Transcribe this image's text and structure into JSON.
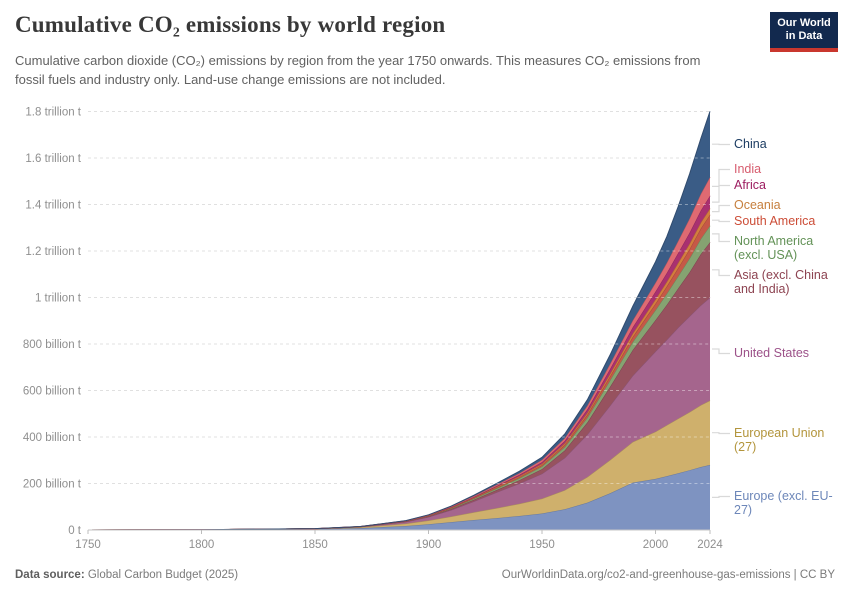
{
  "header": {
    "title": "Cumulative CO₂ emissions by world region",
    "subtitle": "Cumulative carbon dioxide (CO₂) emissions by region from the year 1750 onwards. This measures CO₂ emissions from fossil fuels and industry only. Land-use change emissions are not included.",
    "logo": {
      "line1": "Our World",
      "line2": "in Data"
    }
  },
  "chart_data": {
    "type": "area",
    "stacked": true,
    "title": "Cumulative CO₂ emissions by world region",
    "unit": "tonnes of CO₂",
    "values_unit": "billion tonnes",
    "grid": true,
    "legend_position": "right",
    "x_range": [
      1750,
      2024
    ],
    "y_range_billion_t": [
      0,
      1800
    ],
    "years": [
      1750,
      1800,
      1850,
      1870,
      1890,
      1900,
      1910,
      1920,
      1930,
      1940,
      1950,
      1960,
      1970,
      1980,
      1990,
      2000,
      2005,
      2010,
      2015,
      2020,
      2024
    ],
    "x_tick_labels": [
      "1750",
      "1800",
      "1850",
      "1900",
      "1950",
      "2000",
      "2024"
    ],
    "x_ticks": [
      1750,
      1800,
      1850,
      1900,
      1950,
      2000,
      2024
    ],
    "y_ticks": [
      {
        "value": 0,
        "label": "0 t"
      },
      {
        "value": 200,
        "label": "200 billion t"
      },
      {
        "value": 400,
        "label": "400 billion t"
      },
      {
        "value": 600,
        "label": "600 billion t"
      },
      {
        "value": 800,
        "label": "800 billion t"
      },
      {
        "value": 1000,
        "label": "1 trillion t"
      },
      {
        "value": 1200,
        "label": "1.2 trillion t"
      },
      {
        "value": 1400,
        "label": "1.4 trillion t"
      },
      {
        "value": 1600,
        "label": "1.6 trillion t"
      },
      {
        "value": 1800,
        "label": "1.8 trillion t"
      }
    ],
    "series": [
      {
        "key": "europe-excl-eu27",
        "name": "Europe (excl. EU-27)",
        "color": "#7e93c1",
        "label_color": "#6d87b9",
        "values": [
          0,
          0.9,
          4,
          8,
          17,
          25,
          34,
          43,
          51,
          60,
          71,
          89,
          118,
          158,
          204,
          220,
          232,
          244,
          257,
          271,
          280
        ]
      },
      {
        "key": "european-union-27",
        "name": "European Union (27)",
        "color": "#cfb06c",
        "label_color": "#b3953c",
        "values": [
          0,
          0.2,
          1.2,
          4,
          10.5,
          16,
          24,
          33,
          43,
          53,
          64,
          82,
          110,
          143,
          175,
          203,
          219,
          235,
          250,
          266,
          277
        ]
      },
      {
        "key": "united-states",
        "name": "United States",
        "color": "#a5658d",
        "label_color": "#9c5289",
        "values": [
          0,
          0.03,
          0.35,
          1.7,
          7.5,
          15,
          28,
          47,
          68,
          87,
          107,
          139,
          183,
          234,
          285,
          345,
          368,
          392,
          412,
          430,
          443
        ]
      },
      {
        "key": "asia-excl-china-india",
        "name": "Asia (excl. China and India)",
        "color": "#97525f",
        "label_color": "#8d4351",
        "values": [
          0,
          0,
          0.15,
          0.5,
          1.5,
          2.5,
          4.5,
          7,
          10,
          14,
          20,
          32,
          52,
          81,
          110,
          135,
          150,
          168,
          190,
          220,
          238
        ]
      },
      {
        "key": "north-america-excl-usa",
        "name": "North America (excl. USA)",
        "color": "#85a371",
        "label_color": "#639257",
        "values": [
          0,
          0,
          0.05,
          0.2,
          0.8,
          1.5,
          2.8,
          4.5,
          6.5,
          8.5,
          11,
          15,
          20.5,
          28,
          35,
          43,
          48,
          53,
          59,
          66,
          71
        ]
      },
      {
        "key": "south-america",
        "name": "South America",
        "color": "#c65847",
        "label_color": "#cc4d37",
        "values": [
          0,
          0,
          0,
          0.1,
          0.4,
          0.8,
          1.5,
          2.5,
          3.5,
          4.8,
          6.3,
          8.5,
          12,
          16.5,
          21.5,
          27.5,
          31,
          35,
          39.5,
          44,
          47
        ]
      },
      {
        "key": "oceania",
        "name": "Oceania",
        "color": "#d37d3e",
        "label_color": "#c67f3d",
        "values": [
          0,
          0,
          0.02,
          0.1,
          0.6,
          1,
          1.7,
          2.5,
          3.3,
          4.2,
          5.3,
          6.8,
          9,
          11.8,
          15,
          18.5,
          20.4,
          22.3,
          24.2,
          26,
          27
        ]
      },
      {
        "key": "africa",
        "name": "Africa",
        "color": "#a93070",
        "label_color": "#9c1c60",
        "values": [
          0,
          0,
          0,
          0.1,
          0.4,
          0.8,
          1.5,
          2.5,
          3.8,
          5.5,
          7.5,
          10.3,
          14.5,
          20,
          26.5,
          33.5,
          37.5,
          42,
          46.5,
          51.5,
          55
        ]
      },
      {
        "key": "india",
        "name": "India",
        "color": "#df6a72",
        "label_color": "#d75c6e",
        "values": [
          0,
          0,
          0.05,
          0.2,
          1,
          1.7,
          2.8,
          4.2,
          5.8,
          7.5,
          9.5,
          12.3,
          16.5,
          22,
          29.5,
          38,
          44,
          52,
          61.5,
          72,
          80
        ]
      },
      {
        "key": "china",
        "name": "China",
        "color": "#3a5c86",
        "label_color": "#1d3d63",
        "values": [
          0,
          0,
          0.05,
          0.2,
          0.7,
          1.2,
          2.2,
          3.5,
          5.5,
          8,
          11,
          17.5,
          25,
          39,
          61,
          90,
          113,
          148,
          192,
          238,
          283
        ]
      }
    ]
  },
  "footer": {
    "source_label": "Data source:",
    "source_text": " Global Carbon Budget (2025)",
    "credit": "OurWorldinData.org/co2-and-greenhouse-gas-emissions | CC BY"
  }
}
